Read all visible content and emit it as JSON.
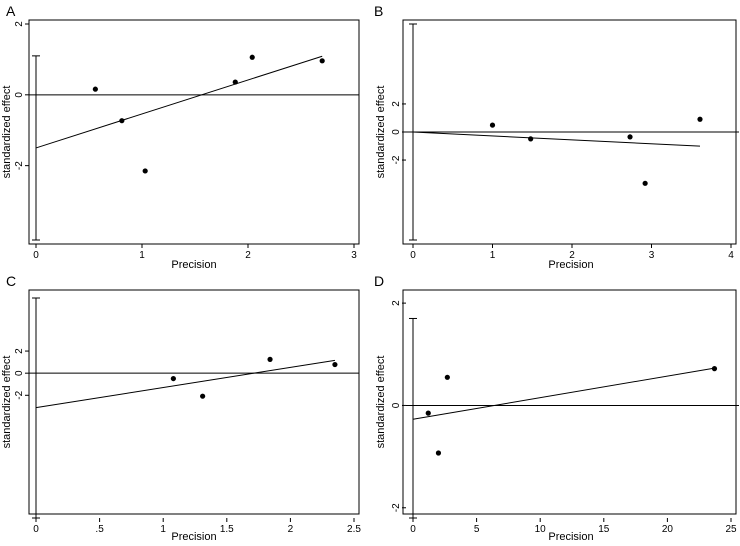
{
  "chart_data": [
    {
      "panel": "A",
      "type": "scatter",
      "xlabel": "Precision",
      "ylabel": "standardized effect",
      "xlim": [
        0,
        3
      ],
      "ylim": [
        -4.1,
        2
      ],
      "xticks": [
        0,
        1,
        2,
        3
      ],
      "xtick_labels": [
        "0",
        "1",
        "2",
        "3"
      ],
      "yticks": [
        -2,
        0,
        2
      ],
      "ytick_labels": [
        "-2",
        "0",
        "2"
      ],
      "points": [
        {
          "x": 0.56,
          "y": 0.16
        },
        {
          "x": 0.81,
          "y": -0.73
        },
        {
          "x": 1.03,
          "y": -2.15
        },
        {
          "x": 1.88,
          "y": 0.36
        },
        {
          "x": 2.04,
          "y": 1.06
        },
        {
          "x": 2.7,
          "y": 0.96
        }
      ],
      "regression_line": {
        "x": [
          0,
          2.7
        ],
        "y": [
          -1.5,
          1.09
        ]
      },
      "reference_line_y": 0,
      "interval_bar": {
        "low": -4.1,
        "high": 1.1
      }
    },
    {
      "panel": "B",
      "type": "scatter",
      "xlabel": "Precision",
      "ylabel": "standardized effect",
      "xlim": [
        0,
        4
      ],
      "ylim": [
        -7.7,
        7.7
      ],
      "xticks": [
        0,
        1,
        2,
        3,
        4
      ],
      "xtick_labels": [
        "0",
        "1",
        "2",
        "3",
        "4"
      ],
      "yticks": [
        -2,
        0,
        2
      ],
      "ytick_labels": [
        "-2",
        "0",
        "2"
      ],
      "points": [
        {
          "x": 1.0,
          "y": 0.49
        },
        {
          "x": 1.48,
          "y": -0.49
        },
        {
          "x": 2.73,
          "y": -0.35
        },
        {
          "x": 2.92,
          "y": -3.66
        },
        {
          "x": 3.61,
          "y": 0.91
        }
      ],
      "regression_line": {
        "x": [
          0,
          3.61
        ],
        "y": [
          0,
          -1.01
        ]
      },
      "reference_line_y": 0,
      "interval_bar": {
        "low": -7.7,
        "high": 7.7
      }
    },
    {
      "panel": "C",
      "type": "scatter",
      "xlabel": "Precision",
      "ylabel": "standardized effect",
      "xlim": [
        0,
        2.5
      ],
      "ylim": [
        -13.1,
        6.8
      ],
      "xticks": [
        0,
        0.5,
        1,
        1.5,
        2,
        2.5
      ],
      "xtick_labels": [
        "0",
        ".5",
        "1",
        "1.5",
        "2",
        "2.5"
      ],
      "yticks": [
        -2,
        0,
        2
      ],
      "ytick_labels": [
        "-2",
        "0",
        "2"
      ],
      "points": [
        {
          "x": 1.08,
          "y": -0.49
        },
        {
          "x": 1.31,
          "y": -2.08
        },
        {
          "x": 1.84,
          "y": 1.25
        },
        {
          "x": 2.35,
          "y": 0.78
        }
      ],
      "regression_line": {
        "x": [
          0,
          2.35
        ],
        "y": [
          -3.12,
          1.16
        ]
      },
      "reference_line_y": 0,
      "interval_bar": {
        "low": -13.1,
        "high": 6.8
      }
    },
    {
      "panel": "D",
      "type": "scatter",
      "xlabel": "Precision",
      "ylabel": "standardized effect",
      "xlim": [
        0,
        25
      ],
      "ylim": [
        -2.2,
        2.1
      ],
      "xticks": [
        0,
        5,
        10,
        15,
        20,
        25
      ],
      "xtick_labels": [
        "0",
        "5",
        "10",
        "15",
        "20",
        "25"
      ],
      "yticks": [
        -2,
        0,
        2
      ],
      "ytick_labels": [
        "-2",
        "0",
        "2"
      ],
      "points": [
        {
          "x": 1.2,
          "y": -0.15
        },
        {
          "x": 2.0,
          "y": -0.93
        },
        {
          "x": 2.7,
          "y": 0.55
        },
        {
          "x": 23.7,
          "y": 0.72
        }
      ],
      "regression_line": {
        "x": [
          0,
          23.7
        ],
        "y": [
          -0.27,
          0.73
        ]
      },
      "reference_line_y": 0,
      "interval_bar": {
        "low": -2.2,
        "high": 1.7
      }
    }
  ]
}
